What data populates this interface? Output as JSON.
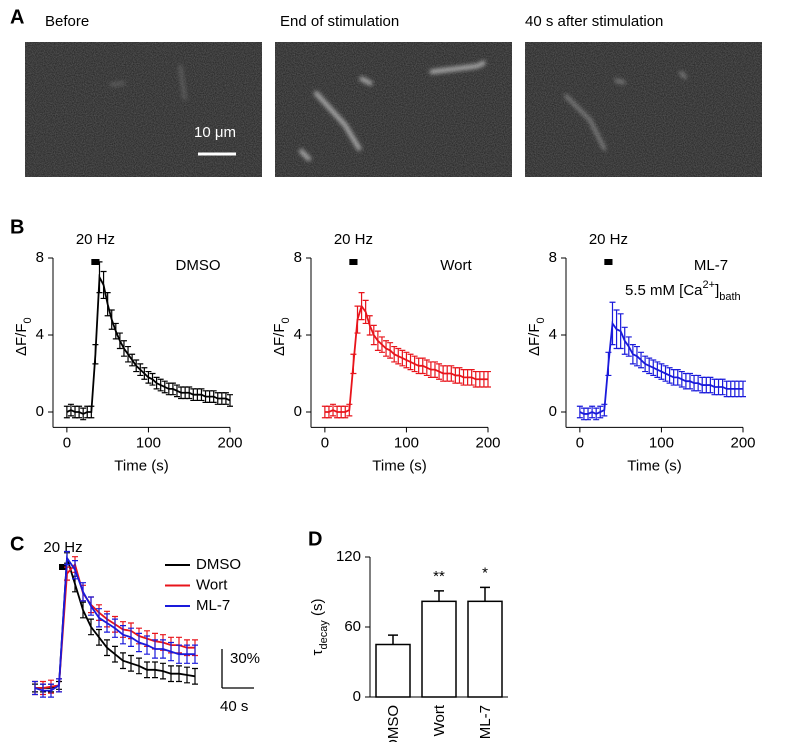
{
  "panel_labels": [
    "A",
    "B",
    "C",
    "D"
  ],
  "panel_a": {
    "images": [
      {
        "title": "Before"
      },
      {
        "title": "End of stimulation"
      },
      {
        "title": "40 s after stimulation"
      }
    ],
    "scale_bar": {
      "label": "10 μm"
    }
  },
  "chart_data": [
    {
      "type": "line",
      "x": [
        0,
        5,
        10,
        15,
        20,
        25,
        30,
        35,
        40,
        45,
        50,
        55,
        60,
        65,
        70,
        75,
        80,
        85,
        90,
        95,
        100,
        105,
        110,
        115,
        120,
        125,
        130,
        135,
        140,
        145,
        150,
        155,
        160,
        165,
        170,
        175,
        180,
        185,
        190,
        195,
        200
      ],
      "series": [
        {
          "name": "DMSO",
          "color": "#000000",
          "values": [
            0,
            0.1,
            0,
            0,
            -0.1,
            0,
            0,
            3.0,
            7.0,
            6.6,
            5.6,
            4.8,
            4.2,
            3.7,
            3.3,
            3.0,
            2.7,
            2.4,
            2.2,
            2.0,
            1.8,
            1.7,
            1.5,
            1.4,
            1.3,
            1.2,
            1.2,
            1.1,
            1.0,
            1.0,
            1.0,
            0.9,
            0.9,
            0.9,
            0.8,
            0.8,
            0.8,
            0.7,
            0.7,
            0.7,
            0.6
          ],
          "errors": [
            0.3,
            0.3,
            0.3,
            0.3,
            0.3,
            0.3,
            0.3,
            0.5,
            0.8,
            0.7,
            0.6,
            0.5,
            0.4,
            0.4,
            0.4,
            0.4,
            0.3,
            0.3,
            0.3,
            0.3,
            0.3,
            0.3,
            0.3,
            0.3,
            0.3,
            0.3,
            0.3,
            0.3,
            0.3,
            0.3,
            0.3,
            0.3,
            0.3,
            0.3,
            0.3,
            0.3,
            0.3,
            0.3,
            0.3,
            0.3,
            0.3
          ]
        }
      ],
      "xlim": [
        -17,
        200
      ],
      "ylim": [
        -0.8,
        8
      ],
      "xticks": [
        0,
        100,
        200
      ],
      "yticks": [
        0,
        4,
        8
      ],
      "x_label": "Time (s)",
      "y_label": [
        {
          "text": "ΔF/F"
        },
        {
          "text": "0",
          "shift": "sub"
        }
      ],
      "stimulus": {
        "label": "20 Hz",
        "start": 30,
        "end": 40
      }
    },
    {
      "type": "line",
      "x": [
        0,
        5,
        10,
        15,
        20,
        25,
        30,
        35,
        40,
        45,
        50,
        55,
        60,
        65,
        70,
        75,
        80,
        85,
        90,
        95,
        100,
        105,
        110,
        115,
        120,
        125,
        130,
        135,
        140,
        145,
        150,
        155,
        160,
        165,
        170,
        175,
        180,
        185,
        190,
        195,
        200
      ],
      "series": [
        {
          "name": "Wort",
          "color": "#e8141b",
          "values": [
            0,
            0,
            0.1,
            0,
            0,
            0,
            0.1,
            2.5,
            4.8,
            5.5,
            5.2,
            4.5,
            4.0,
            3.7,
            3.5,
            3.3,
            3.2,
            3.0,
            2.9,
            2.8,
            2.7,
            2.6,
            2.5,
            2.4,
            2.4,
            2.3,
            2.2,
            2.2,
            2.1,
            2.0,
            2.0,
            2.0,
            1.9,
            1.9,
            1.8,
            1.8,
            1.8,
            1.7,
            1.7,
            1.7,
            1.7
          ],
          "errors": [
            0.3,
            0.3,
            0.3,
            0.3,
            0.3,
            0.3,
            0.3,
            0.5,
            0.7,
            0.7,
            0.6,
            0.5,
            0.5,
            0.5,
            0.4,
            0.4,
            0.4,
            0.4,
            0.4,
            0.4,
            0.4,
            0.4,
            0.4,
            0.4,
            0.4,
            0.4,
            0.4,
            0.4,
            0.4,
            0.4,
            0.4,
            0.4,
            0.4,
            0.4,
            0.4,
            0.4,
            0.4,
            0.4,
            0.4,
            0.4,
            0.4
          ]
        }
      ],
      "xlim": [
        -17,
        200
      ],
      "ylim": [
        -0.8,
        8
      ],
      "xticks": [
        0,
        100,
        200
      ],
      "yticks": [
        0,
        4,
        8
      ],
      "x_label": "Time (s)",
      "y_label": [
        {
          "text": "ΔF/F"
        },
        {
          "text": "0",
          "shift": "sub"
        }
      ],
      "stimulus": {
        "label": "20 Hz",
        "start": 30,
        "end": 40
      }
    },
    {
      "type": "line",
      "x": [
        0,
        5,
        10,
        15,
        20,
        25,
        30,
        35,
        40,
        45,
        50,
        55,
        60,
        65,
        70,
        75,
        80,
        85,
        90,
        95,
        100,
        105,
        110,
        115,
        120,
        125,
        130,
        135,
        140,
        145,
        150,
        155,
        160,
        165,
        170,
        175,
        180,
        185,
        190,
        195,
        200
      ],
      "series": [
        {
          "name": "ML-7",
          "color": "#1a1adb",
          "values": [
            0,
            -0.1,
            -0.1,
            0,
            -0.1,
            0,
            0.1,
            2.5,
            4.6,
            4.3,
            4.2,
            3.7,
            3.4,
            3.0,
            2.9,
            2.7,
            2.5,
            2.4,
            2.3,
            2.2,
            2.1,
            2.0,
            1.9,
            1.8,
            1.8,
            1.7,
            1.6,
            1.6,
            1.5,
            1.5,
            1.4,
            1.4,
            1.4,
            1.3,
            1.3,
            1.3,
            1.2,
            1.2,
            1.2,
            1.2,
            1.2
          ],
          "errors": [
            0.3,
            0.3,
            0.3,
            0.3,
            0.3,
            0.3,
            0.3,
            0.6,
            1.1,
            1.0,
            0.9,
            0.7,
            0.5,
            0.5,
            0.5,
            0.4,
            0.4,
            0.4,
            0.4,
            0.4,
            0.4,
            0.4,
            0.4,
            0.4,
            0.4,
            0.4,
            0.4,
            0.4,
            0.4,
            0.4,
            0.4,
            0.4,
            0.4,
            0.4,
            0.4,
            0.4,
            0.4,
            0.4,
            0.4,
            0.4,
            0.4
          ]
        }
      ],
      "xlim": [
        -17,
        200
      ],
      "ylim": [
        -0.8,
        8
      ],
      "xticks": [
        0,
        100,
        200
      ],
      "yticks": [
        0,
        4,
        8
      ],
      "x_label": "Time (s)",
      "y_label": [
        {
          "text": "ΔF/F"
        },
        {
          "text": "0",
          "shift": "sub"
        }
      ],
      "stimulus": {
        "label": "20 Hz",
        "start": 30,
        "end": 40
      },
      "annotation": [
        {
          "text": "5.5 mM [Ca"
        },
        {
          "text": "2+",
          "shift": "super"
        },
        {
          "text": "]"
        },
        {
          "text": "bath",
          "shift": "sub"
        }
      ]
    },
    {
      "type": "line",
      "x": [
        0,
        10,
        20,
        30,
        40,
        50,
        60,
        70,
        80,
        90,
        100,
        110,
        120,
        130,
        140,
        150,
        160,
        170,
        180,
        190,
        200
      ],
      "series": [
        {
          "name": "DMSO",
          "color": "#000000",
          "values": [
            0,
            0,
            0,
            2,
            100,
            80,
            60,
            47,
            39,
            31,
            26,
            21,
            19,
            17,
            14,
            14,
            13,
            11,
            11,
            10,
            9
          ],
          "errors": [
            3,
            3,
            3,
            3,
            4,
            6,
            6,
            6,
            6,
            6,
            6,
            6,
            6,
            6,
            6,
            6,
            6,
            6,
            6,
            6,
            6
          ]
        },
        {
          "name": "Wort",
          "color": "#e8141b",
          "values": [
            0,
            0,
            1,
            2,
            88,
            95,
            73,
            64,
            58,
            53,
            49,
            45,
            44,
            40,
            38,
            36,
            35,
            33,
            33,
            31,
            31
          ],
          "errors": [
            5,
            5,
            5,
            5,
            5,
            6,
            6,
            6,
            6,
            6,
            6,
            6,
            6,
            6,
            6,
            6,
            6,
            6,
            6,
            6,
            6
          ]
        },
        {
          "name": "ML-7",
          "color": "#1a1adb",
          "values": [
            0,
            -2,
            -2,
            2,
            100,
            91,
            74,
            63,
            54,
            50,
            46,
            41,
            39,
            35,
            33,
            30,
            30,
            28,
            26,
            26,
            26
          ],
          "errors": [
            5,
            5,
            5,
            5,
            5,
            7,
            7,
            7,
            7,
            7,
            7,
            7,
            7,
            7,
            7,
            7,
            7,
            7,
            7,
            7,
            7
          ]
        }
      ],
      "xlim": [
        -10,
        200
      ],
      "ylim": [
        -10,
        110
      ],
      "legend": "top-right",
      "stimulus": {
        "label": "20 Hz",
        "start": 30,
        "end": 40
      },
      "scale_bars": {
        "x": {
          "value": 40,
          "label": "40 s"
        },
        "y": {
          "value": 30,
          "label": "30%"
        }
      }
    },
    {
      "type": "bar",
      "categories": [
        "DMSO",
        "Wort",
        "ML-7"
      ],
      "values": [
        45,
        82,
        82
      ],
      "errors": [
        8,
        9,
        12
      ],
      "color": "#ffffff",
      "ylim": [
        0,
        120
      ],
      "yticks": [
        0,
        60,
        120
      ],
      "y_label": [
        {
          "text": "τ"
        },
        {
          "text": "decay",
          "shift": "sub"
        },
        {
          "text": " (s)"
        }
      ],
      "significance": [
        null,
        "**",
        "*"
      ]
    }
  ]
}
